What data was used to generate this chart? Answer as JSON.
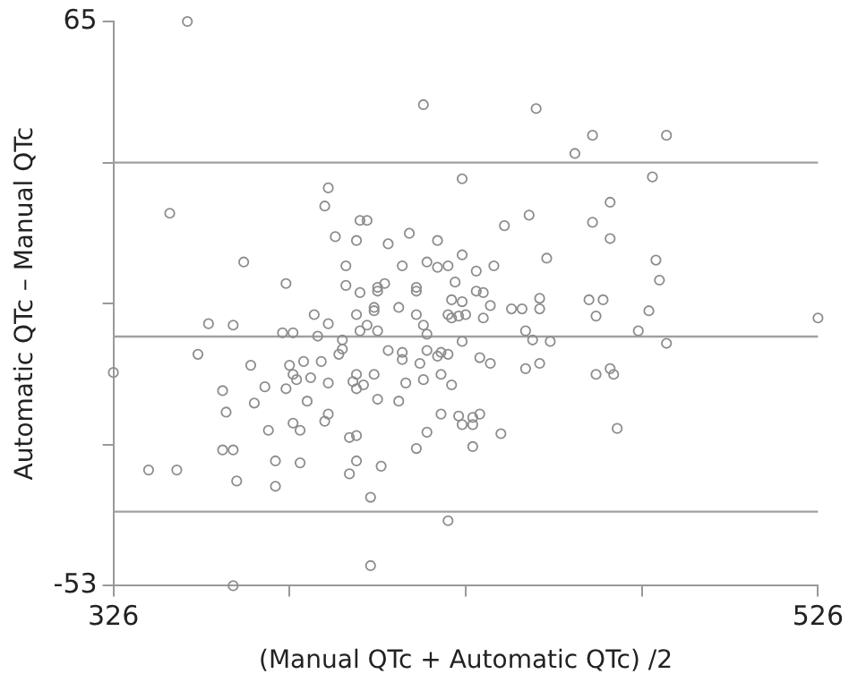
{
  "chart_data": {
    "type": "scatter",
    "xlabel": "(Manual QTc + Automatic QTc) /2",
    "ylabel": "Automatic QTc – Manual QTc",
    "xlim": [
      326,
      526
    ],
    "ylim": [
      -53,
      65
    ],
    "xticks": [
      326,
      {
        "value": 376,
        "label": null
      },
      {
        "value": 426,
        "label": null
      },
      {
        "value": 476,
        "label": null
      },
      526
    ],
    "yticks": [
      -53,
      {
        "value": -23.5,
        "label": null
      },
      {
        "value": 6,
        "label": null
      },
      {
        "value": 35.5,
        "label": null
      },
      65
    ],
    "grid": false,
    "legend": false,
    "marker": "circle",
    "ref_lines": [
      {
        "axis": "y",
        "value": 35.5,
        "color": "#a0a0a0"
      },
      {
        "axis": "y",
        "value": -0.9,
        "color": "#a0a0a0"
      },
      {
        "axis": "y",
        "value": -37.5,
        "color": "#a0a0a0"
      }
    ],
    "series": [
      {
        "color": "#8c8c8c",
        "x": [
          347,
          414,
          446,
          462,
          483,
          457,
          425,
          479,
          387,
          386,
          467,
          342,
          396,
          398,
          389,
          395,
          404,
          410,
          418,
          425,
          363,
          392,
          408,
          415,
          418,
          421,
          375,
          392,
          403,
          401,
          401,
          412,
          412,
          423,
          396,
          422,
          425,
          400,
          400,
          407,
          383,
          395,
          412,
          421,
          422,
          424,
          426,
          353,
          360,
          387,
          398,
          374,
          377,
          396,
          401,
          414,
          415,
          384,
          391,
          425,
          391,
          390,
          404,
          408,
          408,
          415,
          418,
          419,
          421,
          413,
          350,
          365,
          326,
          376,
          380,
          385,
          377,
          378,
          382,
          387,
          394,
          395,
          400,
          395,
          397,
          409,
          414,
          419,
          422,
          357,
          369,
          375,
          444,
          462,
          437,
          467,
          449,
          480,
          429,
          434,
          481,
          429,
          431,
          433,
          447,
          461,
          465,
          439,
          442,
          447,
          478,
          431,
          463,
          526,
          443,
          475,
          445,
          450,
          483,
          430,
          433,
          447,
          443,
          467,
          468,
          463,
          358,
          366,
          381,
          387,
          386,
          370,
          377,
          379,
          401,
          407,
          419,
          424,
          425,
          415,
          412,
          393,
          395,
          357,
          360,
          336,
          344,
          372,
          379,
          395,
          402,
          393,
          361,
          372,
          399,
          421,
          399,
          360,
          428,
          428,
          430,
          428,
          436,
          469
        ],
        "values": [
          65,
          47.6,
          46.8,
          41.2,
          41.2,
          37.4,
          32.1,
          32.5,
          30.2,
          26.4,
          27.2,
          24.9,
          23.4,
          23.4,
          20,
          19.2,
          18.5,
          20.7,
          19.2,
          16.2,
          14.7,
          13.9,
          13.9,
          14.7,
          13.6,
          13.9,
          10.2,
          9.8,
          10.2,
          9.4,
          8.6,
          9.4,
          8.6,
          10.5,
          8.3,
          6.8,
          6.4,
          5.2,
          4.5,
          5.2,
          3.7,
          3.7,
          3.7,
          3.7,
          3,
          3.4,
          3.7,
          1.8,
          1.5,
          1.8,
          1.5,
          -0.1,
          -0.1,
          0.3,
          0.3,
          1.5,
          -0.4,
          -0.8,
          -1.6,
          -1.9,
          -3.5,
          -4.6,
          -3.8,
          -4.2,
          -5.7,
          -3.8,
          -5,
          -4.2,
          -4.6,
          -6.5,
          -4.6,
          -6.9,
          -8.4,
          -6.9,
          -6.1,
          -6.1,
          -8.8,
          -9.9,
          -9.5,
          -10.6,
          -10.3,
          -8.8,
          -8.8,
          -11.8,
          -11,
          -10.6,
          -9.9,
          -8.8,
          -11,
          -12.2,
          -11.4,
          -11.8,
          24.5,
          23,
          22.3,
          19.6,
          15.5,
          15.1,
          12.8,
          13.9,
          10.9,
          8.6,
          8.3,
          5.6,
          7.1,
          6.8,
          6.8,
          4.9,
          4.9,
          4.9,
          4.5,
          3,
          3.4,
          3,
          0.3,
          0.3,
          -1.6,
          -1.9,
          -2.3,
          -5.3,
          -6.5,
          -6.5,
          -7.6,
          -7.6,
          -8.8,
          -8.8,
          -16.7,
          -14.8,
          -14.4,
          -17.1,
          -18.6,
          -20.5,
          -19,
          -20.5,
          -14,
          -14.4,
          -17.1,
          -17.5,
          -19.3,
          -20.9,
          -24.3,
          -22,
          -21.6,
          -24.6,
          -24.6,
          -28.8,
          -28.8,
          -26.9,
          -27.3,
          -26.9,
          -28,
          -29.6,
          -31.1,
          -32.2,
          -34.5,
          -39.4,
          -48.8,
          -53,
          -17.8,
          -19.3,
          -17.1,
          -23.9,
          -21.2,
          -20.1
        ]
      }
    ]
  }
}
